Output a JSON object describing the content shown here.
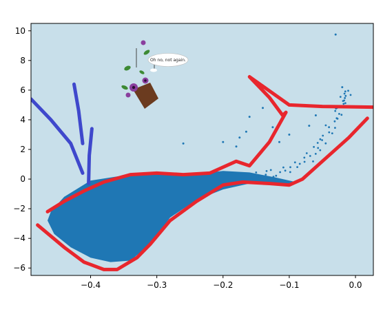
{
  "colors": {
    "plot_background": "#c8dfea",
    "points": "#1f77b4",
    "red_annotation": "#e8262d",
    "blue_annotation": "#3f48cc",
    "pot": "#6b3b1f",
    "leaf": "#3d8a34",
    "petal": "#8a3f9e"
  },
  "annotation": {
    "speech_bubble_text": "Oh no, not again.",
    "doodle_icons": [
      "flower-pot-icon",
      "speech-bubble-icon"
    ]
  },
  "chart_data": {
    "type": "scatter",
    "title": "",
    "xlabel": "",
    "ylabel": "",
    "xlim": [
      -0.49,
      0.027
    ],
    "ylim": [
      -6.5,
      10.5
    ],
    "x_ticks": [
      -0.4,
      -0.3,
      -0.2,
      -0.1,
      0.0
    ],
    "x_tick_labels": [
      "−0.4",
      "−0.3",
      "−0.2",
      "−0.1",
      "0.0"
    ],
    "y_ticks": [
      -6,
      -4,
      -2,
      0,
      2,
      4,
      6,
      8,
      10
    ],
    "y_tick_labels": [
      "−6",
      "−4",
      "−2",
      "0",
      "2",
      "4",
      "6",
      "8",
      "10"
    ],
    "grid": false,
    "legend": null,
    "series": [
      {
        "main_cloud_outline": [
          [
            -0.46,
            -2.2
          ],
          [
            -0.44,
            -1.2
          ],
          [
            -0.4,
            -0.1
          ],
          [
            -0.35,
            0.25
          ],
          [
            -0.3,
            0.35
          ],
          [
            -0.25,
            0.3
          ],
          [
            -0.2,
            0.55
          ],
          [
            -0.16,
            0.45
          ],
          [
            -0.12,
            0.1
          ],
          [
            -0.09,
            -0.2
          ],
          [
            -0.1,
            -0.4
          ],
          [
            -0.16,
            -0.3
          ],
          [
            -0.2,
            -0.7
          ],
          [
            -0.24,
            -1.4
          ],
          [
            -0.28,
            -2.6
          ],
          [
            -0.31,
            -4.4
          ],
          [
            -0.34,
            -5.5
          ],
          [
            -0.37,
            -5.6
          ],
          [
            -0.4,
            -5.3
          ],
          [
            -0.43,
            -4.6
          ],
          [
            -0.455,
            -3.7
          ],
          [
            -0.465,
            -2.8
          ]
        ],
        "upper_right_branch": [
          [
            -0.15,
            0.2
          ],
          [
            -0.11,
            0.5
          ],
          [
            -0.07,
            1.4
          ],
          [
            -0.05,
            2.6
          ],
          [
            -0.03,
            4.0
          ],
          [
            -0.02,
            5.3
          ],
          [
            -0.01,
            6.0
          ]
        ],
        "outliers": [
          [
            -0.03,
            9.75
          ],
          [
            -0.02,
            6.2
          ],
          [
            -0.14,
            4.8
          ],
          [
            -0.16,
            4.2
          ],
          [
            -0.26,
            2.4
          ],
          [
            -0.2,
            2.5
          ],
          [
            -0.18,
            2.2
          ],
          [
            -0.06,
            4.3
          ],
          [
            -0.07,
            3.6
          ],
          [
            -0.1,
            3.0
          ],
          [
            -0.115,
            2.5
          ],
          [
            -0.125,
            3.5
          ],
          [
            -0.165,
            3.2
          ],
          [
            -0.175,
            2.8
          ]
        ]
      }
    ],
    "annotations": [
      {
        "kind": "red-outline",
        "points": [
          [
            -0.465,
            -2.2
          ],
          [
            -0.44,
            -1.5
          ],
          [
            -0.41,
            -0.8
          ],
          [
            -0.38,
            -0.2
          ],
          [
            -0.34,
            0.3
          ],
          [
            -0.3,
            0.4
          ],
          [
            -0.26,
            0.3
          ],
          [
            -0.22,
            0.4
          ],
          [
            -0.18,
            1.2
          ],
          [
            -0.16,
            0.9
          ],
          [
            -0.13,
            2.5
          ],
          [
            -0.105,
            4.5
          ],
          [
            -0.11,
            4.3
          ],
          [
            -0.13,
            5.5
          ],
          [
            -0.16,
            6.9
          ],
          [
            -0.1,
            5.0
          ],
          [
            -0.05,
            4.9
          ],
          [
            0.027,
            4.85
          ]
        ]
      },
      {
        "kind": "red-outline",
        "points": [
          [
            0.018,
            4.1
          ],
          [
            -0.01,
            2.8
          ],
          [
            -0.05,
            1.2
          ],
          [
            -0.08,
            0.0
          ],
          [
            -0.1,
            -0.4
          ],
          [
            -0.13,
            -0.3
          ],
          [
            -0.17,
            -0.2
          ],
          [
            -0.2,
            -0.4
          ],
          [
            -0.24,
            -1.5
          ],
          [
            -0.28,
            -2.8
          ],
          [
            -0.31,
            -4.4
          ],
          [
            -0.33,
            -5.3
          ],
          [
            -0.36,
            -6.1
          ],
          [
            -0.38,
            -6.1
          ],
          [
            -0.41,
            -5.6
          ],
          [
            -0.44,
            -4.6
          ],
          [
            -0.48,
            -3.1
          ]
        ]
      },
      {
        "kind": "blue-stroke",
        "points": [
          [
            -0.49,
            5.4
          ],
          [
            -0.46,
            4.0
          ],
          [
            -0.43,
            2.4
          ],
          [
            -0.412,
            0.4
          ]
        ]
      },
      {
        "kind": "blue-stroke",
        "points": [
          [
            -0.425,
            6.4
          ],
          [
            -0.418,
            4.6
          ],
          [
            -0.412,
            2.4
          ]
        ]
      },
      {
        "kind": "blue-stroke",
        "points": [
          [
            -0.398,
            3.4
          ],
          [
            -0.402,
            1.6
          ],
          [
            -0.403,
            -0.3
          ]
        ]
      }
    ]
  }
}
